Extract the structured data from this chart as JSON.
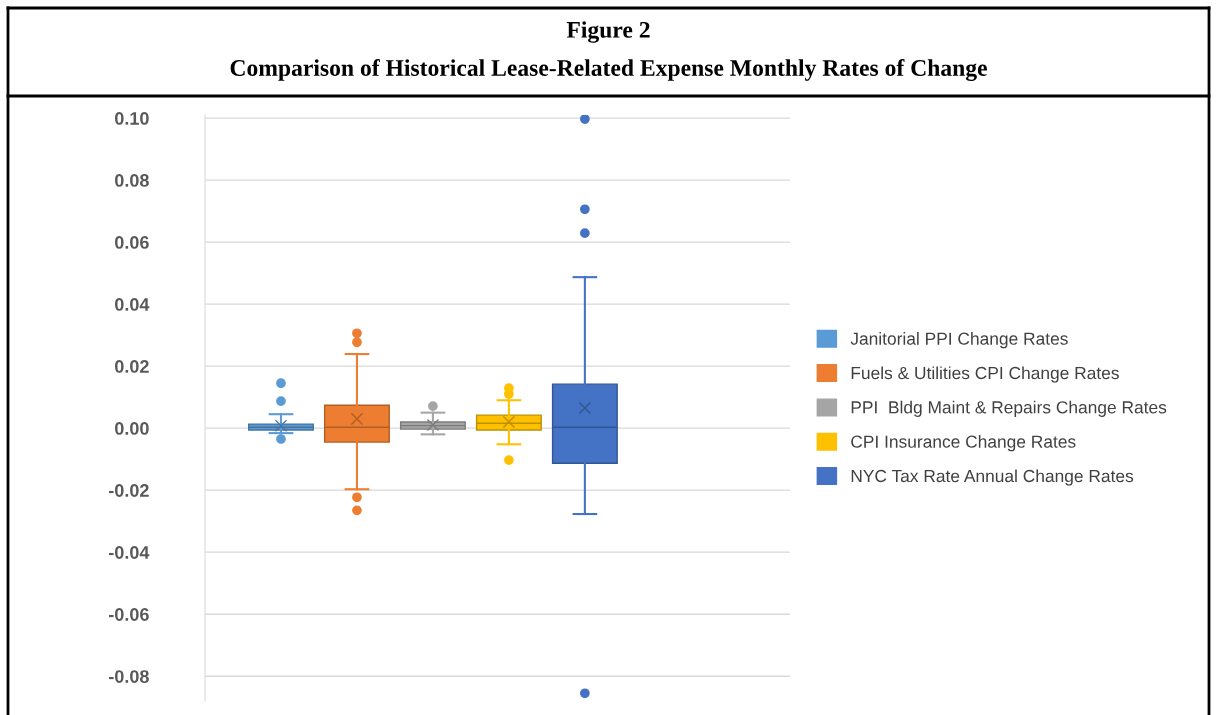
{
  "chart_data": {
    "type": "box",
    "title": "Figure 2",
    "subtitle": "Comparison of Historical Lease-Related Expense Monthly Rates of Change",
    "categories": [
      null
    ],
    "ylim": [
      -0.088,
      0.101
    ],
    "yticks": [
      {
        "value": -0.08,
        "label": "-0.08"
      },
      {
        "value": -0.06,
        "label": "-0.06"
      },
      {
        "value": -0.04,
        "label": "-0.04"
      },
      {
        "value": -0.02,
        "label": "-0.02"
      },
      {
        "value": 0,
        "label": "0.00"
      },
      {
        "value": 0.02,
        "label": "0.02"
      },
      {
        "value": 0.04,
        "label": "0.04"
      },
      {
        "value": 0.06,
        "label": "0.06"
      },
      {
        "value": 0.08,
        "label": "0.08"
      },
      {
        "value": 0.1,
        "label": "0.10"
      }
    ],
    "tick_labels": "y",
    "grid": "y",
    "legend": "right",
    "series": [
      {
        "name": "Janitorial PPI Change Rates",
        "color": "#5b9bd5",
        "boxes": [
          {
            "low": -0.0016,
            "q1": -0.0006,
            "median": 0.0003,
            "q3": 0.0013,
            "high": 0.0045,
            "mean": 0.0008,
            "outliers": [
              0.0145,
              0.0087,
              -0.0035
            ]
          }
        ]
      },
      {
        "name": "Fuels & Utilities CPI Change Rates",
        "color": "#ed7d31",
        "boxes": [
          {
            "low": -0.0197,
            "q1": -0.0045,
            "median": 0.0003,
            "q3": 0.0074,
            "high": 0.0239,
            "mean": 0.003,
            "outliers": [
              0.0306,
              0.0277,
              -0.0223,
              -0.0265
            ]
          }
        ]
      },
      {
        "name": "PPI  Bldg Maint & Repairs Change Rates",
        "color": "#a5a5a5",
        "boxes": [
          {
            "low": -0.002,
            "q1": -0.0003,
            "median": 0.0008,
            "q3": 0.002,
            "high": 0.005,
            "mean": 0.001,
            "outliers": [
              0.0071
            ]
          }
        ]
      },
      {
        "name": "CPI Insurance Change Rates",
        "color": "#ffc000",
        "boxes": [
          {
            "low": -0.0052,
            "q1": -0.0006,
            "median": 0.0016,
            "q3": 0.0042,
            "high": 0.009,
            "mean": 0.002,
            "outliers": [
              0.0129,
              0.011,
              -0.0103
            ]
          }
        ]
      },
      {
        "name": "NYC Tax Rate Annual Change Rates",
        "color": "#4472c4",
        "boxes": [
          {
            "low": -0.0277,
            "q1": -0.0113,
            "median": 0.0003,
            "q3": 0.0142,
            "high": 0.0487,
            "mean": 0.0065,
            "outliers": [
              0.0997,
              0.0706,
              0.0629,
              -0.0855
            ]
          }
        ]
      }
    ]
  }
}
